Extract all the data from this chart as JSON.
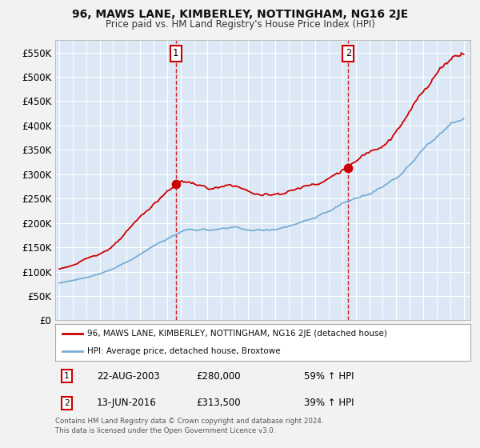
{
  "title": "96, MAWS LANE, KIMBERLEY, NOTTINGHAM, NG16 2JE",
  "subtitle": "Price paid vs. HM Land Registry's House Price Index (HPI)",
  "plot_bg_color": "#dce8f5",
  "grid_color": "#ffffff",
  "fig_bg_color": "#f2f2f2",
  "ylim": [
    0,
    575000
  ],
  "yticks": [
    0,
    50000,
    100000,
    150000,
    200000,
    250000,
    300000,
    350000,
    400000,
    450000,
    500000,
    550000
  ],
  "sale1_date": 2003.64,
  "sale1_price": 280000,
  "sale1_label": "1",
  "sale2_date": 2016.44,
  "sale2_price": 313500,
  "sale2_label": "2",
  "legend_line1": "96, MAWS LANE, KIMBERLEY, NOTTINGHAM, NG16 2JE (detached house)",
  "legend_line2": "HPI: Average price, detached house, Broxtowe",
  "annotation1_date": "22-AUG-2003",
  "annotation1_price": "£280,000",
  "annotation1_hpi": "59% ↑ HPI",
  "annotation2_date": "13-JUN-2016",
  "annotation2_price": "£313,500",
  "annotation2_hpi": "39% ↑ HPI",
  "footer": "Contains HM Land Registry data © Crown copyright and database right 2024.\nThis data is licensed under the Open Government Licence v3.0.",
  "red_line_color": "#cc0000",
  "blue_line_color": "#7aadd4",
  "marker_color": "#cc0000",
  "box_edge_color": "#cc0000"
}
